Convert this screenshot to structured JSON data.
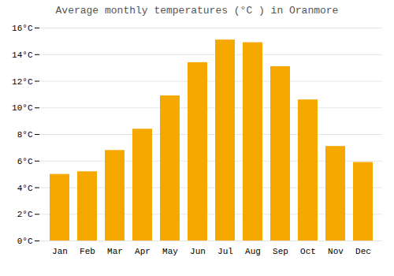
{
  "chart_data": {
    "type": "bar",
    "title": "Average monthly temperatures (°C ) in Oranmore",
    "categories": [
      "Jan",
      "Feb",
      "Mar",
      "Apr",
      "May",
      "Jun",
      "Jul",
      "Aug",
      "Sep",
      "Oct",
      "Nov",
      "Dec"
    ],
    "values": [
      5.0,
      5.2,
      6.8,
      8.4,
      10.9,
      13.4,
      15.1,
      14.9,
      13.1,
      10.6,
      7.1,
      5.9
    ],
    "color": "#F5A800",
    "ylim": [
      0,
      16
    ],
    "yticks": [
      {
        "value": 0,
        "label": "0°C"
      },
      {
        "value": 2,
        "label": "2°C"
      },
      {
        "value": 4,
        "label": "4°C"
      },
      {
        "value": 6,
        "label": "6°C"
      },
      {
        "value": 8,
        "label": "8°C"
      },
      {
        "value": 10,
        "label": "10°C"
      },
      {
        "value": 12,
        "label": "12°C"
      },
      {
        "value": 14,
        "label": "14°C"
      },
      {
        "value": 16,
        "label": "16°C"
      }
    ],
    "grid": true
  }
}
